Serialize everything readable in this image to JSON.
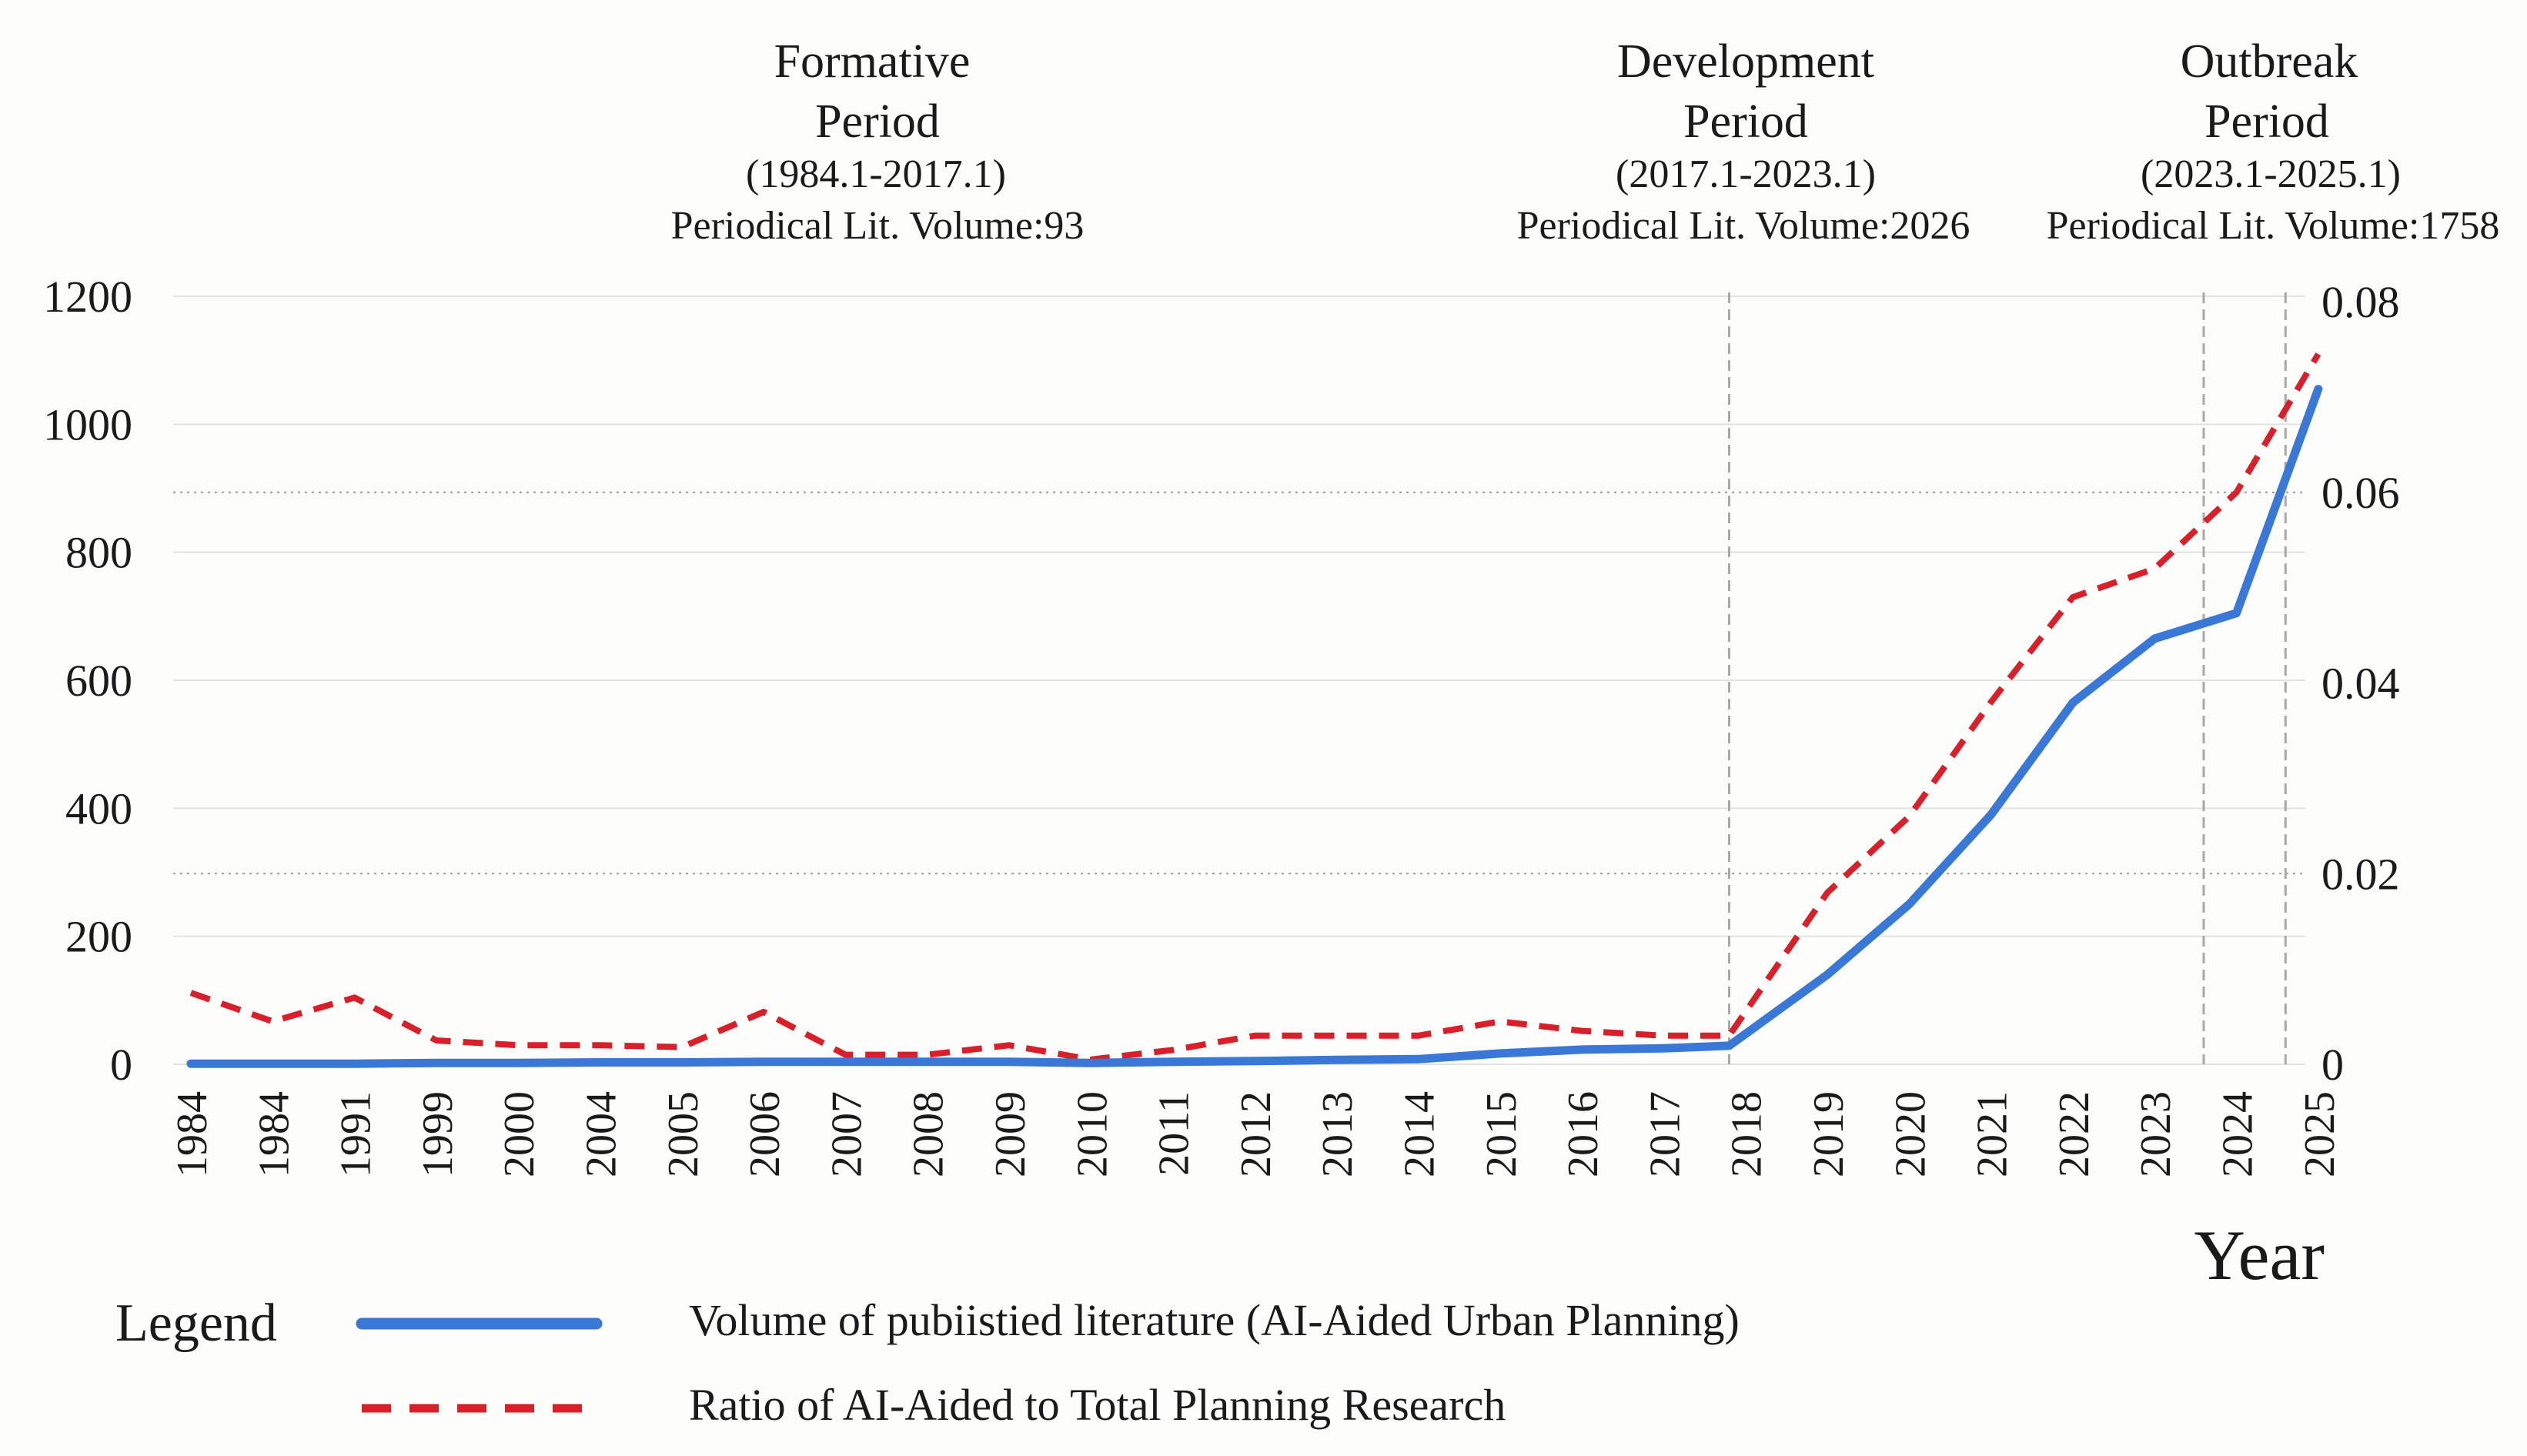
{
  "chart_data": {
    "type": "line",
    "x_label": "Year",
    "categories": [
      "1984",
      "1984",
      "1991",
      "1999",
      "2000",
      "2004",
      "2005",
      "2006",
      "2007",
      "2008",
      "2009",
      "2010",
      "2011",
      "2012",
      "2013",
      "2014",
      "2015",
      "2016",
      "2017",
      "2018",
      "2019",
      "2020",
      "2021",
      "2022",
      "2023",
      "2024",
      "2025"
    ],
    "y_left": {
      "ticks": [
        "0",
        "200",
        "400",
        "600",
        "800",
        "1000",
        "1200"
      ],
      "range": [
        0,
        1200
      ]
    },
    "y_right": {
      "ticks": [
        "0",
        "0.02",
        "0.04",
        "0.06",
        "0.08"
      ],
      "range": [
        0,
        0.08
      ]
    },
    "series": [
      {
        "name": "Volume of pubiistied literature (AI-Aided Urban Planning)",
        "axis": "left",
        "color": "#3a78d8",
        "style": "solid",
        "x_positions": [
          0,
          1,
          2,
          3,
          4,
          5,
          6,
          7,
          8,
          9,
          10,
          11,
          12,
          13,
          14,
          15,
          16,
          17,
          18,
          18.8,
          20,
          21,
          22,
          23,
          24,
          25,
          26
        ],
        "values": [
          1,
          1,
          1,
          2,
          2,
          3,
          3,
          4,
          4,
          4,
          4,
          2,
          4,
          5,
          7,
          8,
          17,
          23,
          25,
          29,
          140,
          250,
          390,
          565,
          665,
          705,
          1055
        ]
      },
      {
        "name": "Ratio of AI-Aided to Total Planning Research",
        "axis": "right",
        "color": "#d81f2a",
        "style": "dashed",
        "x_positions": [
          0,
          1,
          2,
          3,
          4,
          5,
          6,
          7,
          8,
          9,
          10,
          11,
          12,
          13,
          14,
          15,
          16,
          17,
          18,
          18.8,
          20,
          21,
          22,
          23,
          24,
          25,
          26
        ],
        "values": [
          0.0075,
          0.0045,
          0.007,
          0.0025,
          0.002,
          0.002,
          0.0018,
          0.0055,
          0.001,
          0.001,
          0.002,
          0.0005,
          0.0015,
          0.003,
          0.003,
          0.003,
          0.0045,
          0.0035,
          0.003,
          0.003,
          0.018,
          0.026,
          0.038,
          0.049,
          0.052,
          0.06,
          0.0745
        ]
      }
    ],
    "periods": [
      {
        "title": "Formative",
        "title2": "Period",
        "range": "(1984.1-2017.1)",
        "volume": "Periodical Lit. Volume:93"
      },
      {
        "title": "Development",
        "title2": "Period",
        "range": "(2017.1-2023.1)",
        "volume": "Periodical Lit. Volume:2026"
      },
      {
        "title": "Outbreak",
        "title2": "Period",
        "range": "(2023.1-2025.1)",
        "volume": "Periodical Lit. Volume:1758"
      }
    ],
    "period_boundaries": [
      18.8,
      24.6,
      25.6
    ],
    "legend_title": "Legend"
  }
}
